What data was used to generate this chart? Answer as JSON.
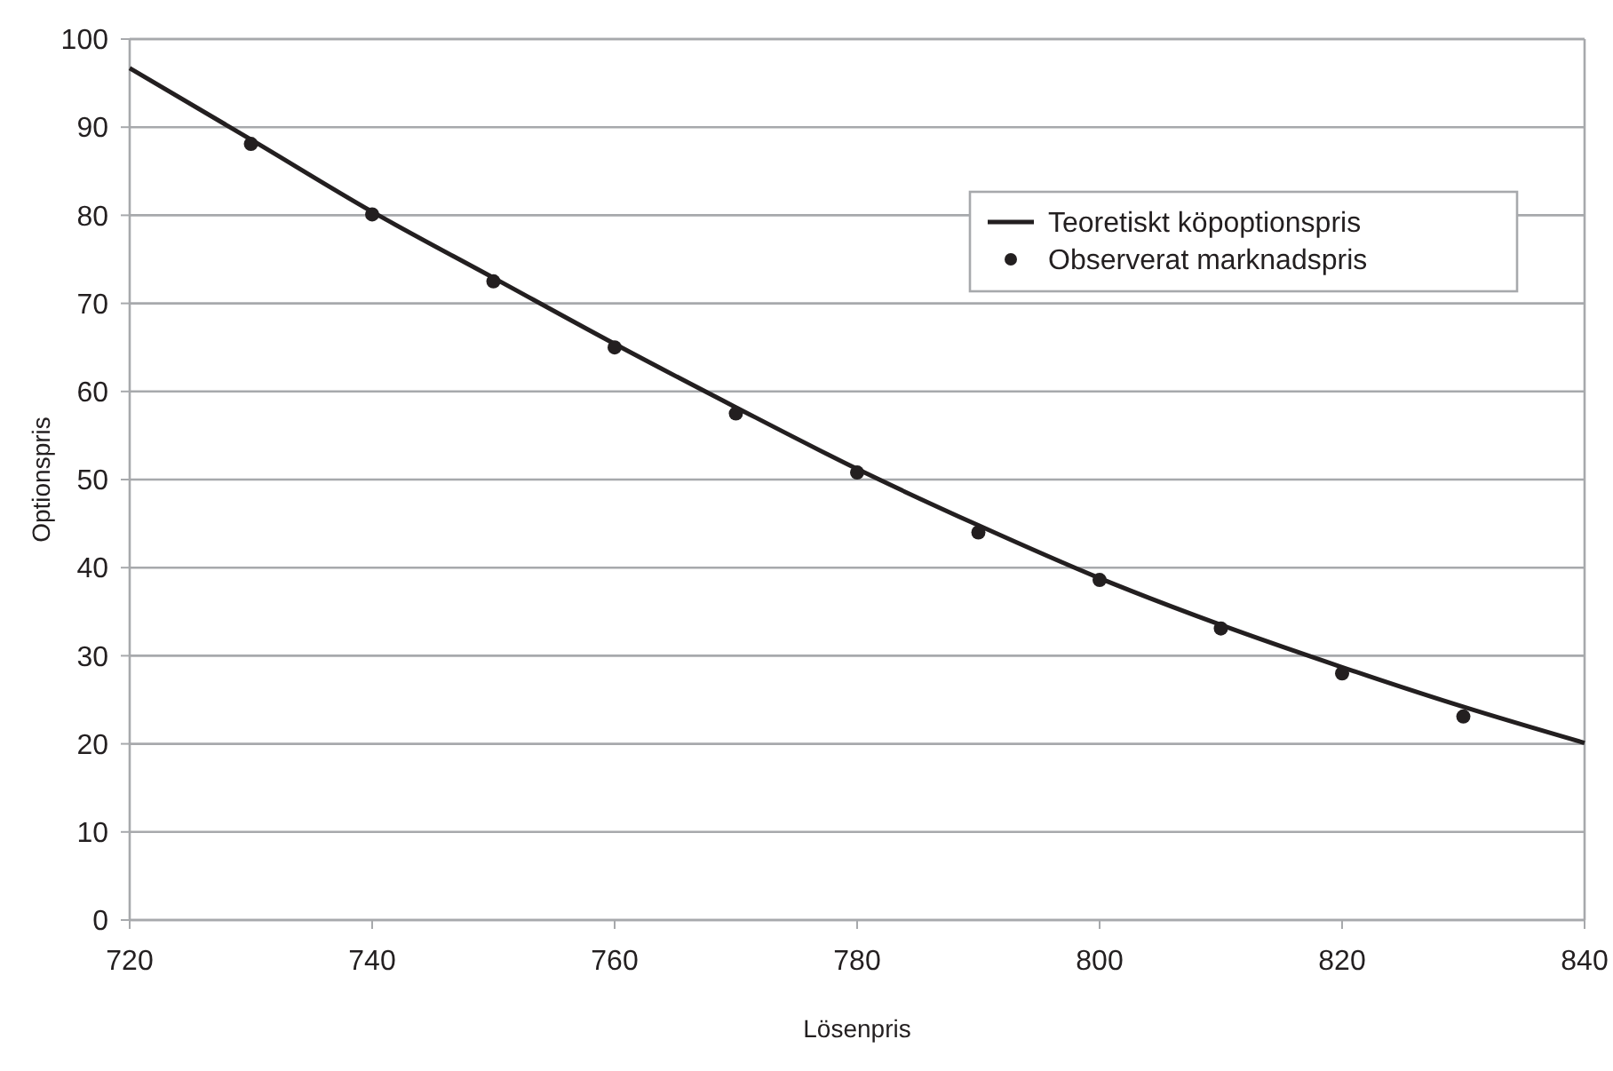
{
  "chart_data": {
    "type": "line",
    "xlabel": "Lösenpris",
    "ylabel": "Optionspris",
    "x": [
      720,
      730,
      740,
      750,
      760,
      770,
      780,
      790,
      800,
      810,
      820,
      830,
      840
    ],
    "series": [
      {
        "name": "Teoretiskt köpoptionspris",
        "color": "#231f20",
        "marker": "none",
        "line_style": "solid",
        "values": [
          96.7,
          88.6,
          80.4,
          72.9,
          65.4,
          58.2,
          51.2,
          44.8,
          38.8,
          33.5,
          28.7,
          24.2,
          20.1
        ]
      },
      {
        "name": "Observerat marknadspris",
        "type": "scatter",
        "color": "#231f20",
        "marker": "circle",
        "values": [
          null,
          88.1,
          80.1,
          72.5,
          65.0,
          57.5,
          50.8,
          44.0,
          38.6,
          33.1,
          28.0,
          23.1,
          null
        ]
      }
    ],
    "xlim": [
      720,
      840
    ],
    "xticks": [
      720,
      740,
      760,
      780,
      800,
      820,
      840
    ],
    "ylim": [
      0,
      100
    ],
    "yticks": [
      0,
      10,
      20,
      30,
      40,
      50,
      60,
      70,
      80,
      90,
      100
    ],
    "grid": "y",
    "legend": "top right"
  }
}
